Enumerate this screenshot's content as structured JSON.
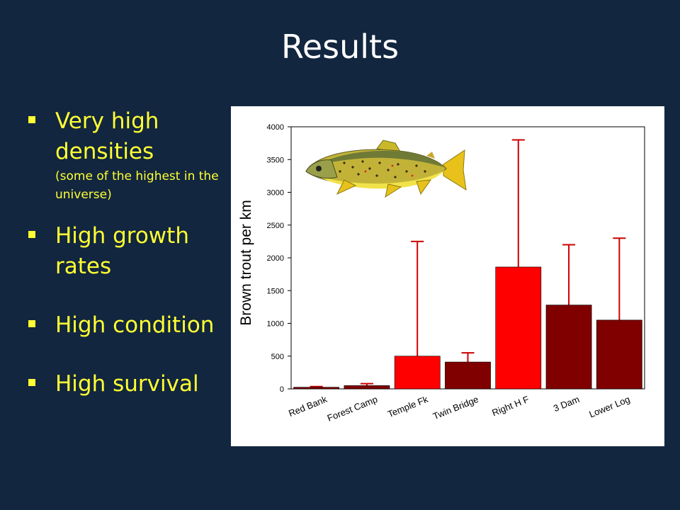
{
  "slide": {
    "title": "Results"
  },
  "bullets": [
    {
      "main": "Very high densities",
      "sub": "(some of the highest in the universe)"
    },
    {
      "main": "High growth rates"
    },
    {
      "main": "High condition"
    },
    {
      "main": "High survival"
    }
  ],
  "colors": {
    "background": "#12263f",
    "title": "#ffffff",
    "bullet_text": "#ffff33",
    "bar_bright": "#ff0000",
    "bar_dark": "#800000",
    "error_bar": "#cc0000"
  },
  "illustration": {
    "icon": "brown-trout-illustration"
  },
  "chart_data": {
    "type": "bar",
    "ylabel": "Brown trout per km",
    "xlabel": "",
    "ylim": [
      0,
      4000
    ],
    "yticks": [
      0,
      500,
      1000,
      1500,
      2000,
      2500,
      3000,
      3500,
      4000
    ],
    "categories": [
      "Red Bank",
      "Forest Camp",
      "Temple Fk",
      "Twin Bridge",
      "Right H F",
      "3 Dam",
      "Lower Log"
    ],
    "values": [
      25,
      50,
      500,
      410,
      1860,
      1280,
      1050
    ],
    "error_upper": [
      35,
      80,
      2250,
      550,
      3800,
      2200,
      2300
    ],
    "bar_colors": [
      "#800000",
      "#800000",
      "#ff0000",
      "#800000",
      "#ff0000",
      "#800000",
      "#800000"
    ],
    "grid": false,
    "legend": "none"
  }
}
